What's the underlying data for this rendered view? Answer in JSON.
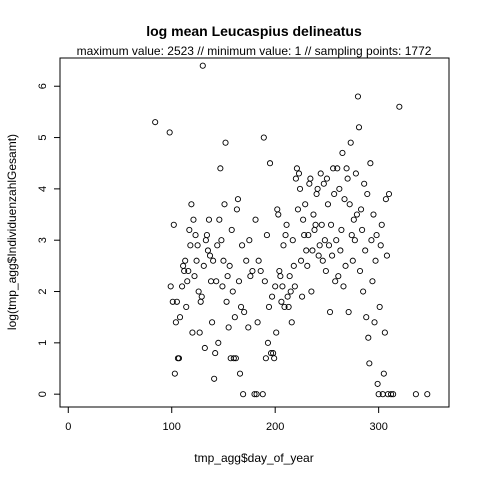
{
  "chart_data": {
    "type": "scatter",
    "title": "log mean Leucaspius delineatus",
    "subtitle": "maximum value: 2523  //  minimum value: 1  // sampling points: 1772",
    "xlabel": "tmp_agg$day_of_year",
    "ylabel": "log(tmp_agg$IndividuenzahlGesamt)",
    "xlim": [
      -8,
      368
    ],
    "ylim": [
      -0.25,
      6.55
    ],
    "xticks": [
      0,
      100,
      200,
      300
    ],
    "yticks": [
      0,
      1,
      2,
      3,
      4,
      5,
      6
    ],
    "marker": "open-circle",
    "grid": false,
    "legend": "none",
    "points": [
      [
        84,
        5.3
      ],
      [
        98,
        5.1
      ],
      [
        99,
        2.1
      ],
      [
        101,
        1.8
      ],
      [
        102,
        3.3
      ],
      [
        103,
        0.4
      ],
      [
        104,
        1.4
      ],
      [
        105,
        1.8
      ],
      [
        106,
        0.7
      ],
      [
        107,
        0.7
      ],
      [
        108,
        1.5
      ],
      [
        110,
        2.1
      ],
      [
        111,
        2.5
      ],
      [
        112,
        2.4
      ],
      [
        113,
        2.6
      ],
      [
        114,
        1.7
      ],
      [
        115,
        2.2
      ],
      [
        116,
        2.4
      ],
      [
        117,
        3.2
      ],
      [
        118,
        2.9
      ],
      [
        119,
        3.7
      ],
      [
        120,
        1.2
      ],
      [
        121,
        3.4
      ],
      [
        122,
        2.3
      ],
      [
        123,
        3.1
      ],
      [
        124,
        2.6
      ],
      [
        125,
        2.9
      ],
      [
        126,
        2.0
      ],
      [
        127,
        1.2
      ],
      [
        128,
        1.8
      ],
      [
        129,
        1.9
      ],
      [
        130,
        6.4
      ],
      [
        131,
        2.5
      ],
      [
        132,
        0.9
      ],
      [
        133,
        3.0
      ],
      [
        134,
        3.1
      ],
      [
        135,
        2.8
      ],
      [
        136,
        3.4
      ],
      [
        137,
        2.7
      ],
      [
        138,
        2.2
      ],
      [
        139,
        1.4
      ],
      [
        140,
        2.6
      ],
      [
        141,
        0.3
      ],
      [
        142,
        0.8
      ],
      [
        143,
        2.2
      ],
      [
        144,
        2.9
      ],
      [
        145,
        1.0
      ],
      [
        146,
        3.4
      ],
      [
        147,
        4.4
      ],
      [
        148,
        3.0
      ],
      [
        149,
        2.1
      ],
      [
        150,
        2.6
      ],
      [
        151,
        3.7
      ],
      [
        152,
        4.9
      ],
      [
        153,
        1.8
      ],
      [
        154,
        2.3
      ],
      [
        155,
        1.3
      ],
      [
        156,
        2.5
      ],
      [
        157,
        0.7
      ],
      [
        158,
        3.2
      ],
      [
        159,
        2.0
      ],
      [
        160,
        0.7
      ],
      [
        161,
        1.5
      ],
      [
        162,
        0.7
      ],
      [
        163,
        3.6
      ],
      [
        164,
        3.8
      ],
      [
        165,
        2.2
      ],
      [
        166,
        0.4
      ],
      [
        167,
        1.7
      ],
      [
        168,
        2.9
      ],
      [
        169,
        0.0
      ],
      [
        170,
        1.6
      ],
      [
        172,
        2.6
      ],
      [
        174,
        1.3
      ],
      [
        175,
        3.0
      ],
      [
        176,
        2.3
      ],
      [
        178,
        2.4
      ],
      [
        180,
        0.0
      ],
      [
        181,
        3.4
      ],
      [
        182,
        0.0
      ],
      [
        183,
        1.4
      ],
      [
        184,
        2.6
      ],
      [
        186,
        2.4
      ],
      [
        188,
        0.0
      ],
      [
        189,
        5.0
      ],
      [
        190,
        2.2
      ],
      [
        191,
        0.7
      ],
      [
        192,
        3.1
      ],
      [
        193,
        1.0
      ],
      [
        194,
        1.7
      ],
      [
        195,
        4.5
      ],
      [
        196,
        0.8
      ],
      [
        197,
        1.9
      ],
      [
        198,
        0.8
      ],
      [
        199,
        0.7
      ],
      [
        200,
        2.1
      ],
      [
        201,
        1.2
      ],
      [
        202,
        3.6
      ],
      [
        203,
        3.5
      ],
      [
        204,
        2.4
      ],
      [
        205,
        2.3
      ],
      [
        206,
        1.8
      ],
      [
        207,
        2.1
      ],
      [
        208,
        2.9
      ],
      [
        209,
        1.7
      ],
      [
        210,
        3.1
      ],
      [
        211,
        3.3
      ],
      [
        212,
        1.9
      ],
      [
        213,
        1.7
      ],
      [
        214,
        2.3
      ],
      [
        215,
        2.0
      ],
      [
        216,
        1.4
      ],
      [
        217,
        3.0
      ],
      [
        218,
        2.5
      ],
      [
        219,
        2.1
      ],
      [
        220,
        4.2
      ],
      [
        221,
        4.4
      ],
      [
        222,
        3.6
      ],
      [
        223,
        4.3
      ],
      [
        224,
        4.0
      ],
      [
        225,
        2.6
      ],
      [
        226,
        1.9
      ],
      [
        227,
        3.4
      ],
      [
        228,
        3.1
      ],
      [
        229,
        3.7
      ],
      [
        230,
        2.8
      ],
      [
        231,
        2.5
      ],
      [
        232,
        3.1
      ],
      [
        233,
        4.1
      ],
      [
        234,
        4.2
      ],
      [
        235,
        2.0
      ],
      [
        236,
        2.8
      ],
      [
        237,
        3.5
      ],
      [
        238,
        3.2
      ],
      [
        239,
        3.3
      ],
      [
        240,
        3.9
      ],
      [
        241,
        4.0
      ],
      [
        242,
        2.7
      ],
      [
        243,
        2.9
      ],
      [
        244,
        4.3
      ],
      [
        245,
        3.3
      ],
      [
        246,
        2.6
      ],
      [
        247,
        4.1
      ],
      [
        248,
        3.0
      ],
      [
        249,
        2.4
      ],
      [
        250,
        4.2
      ],
      [
        251,
        3.7
      ],
      [
        252,
        2.9
      ],
      [
        253,
        1.6
      ],
      [
        254,
        3.3
      ],
      [
        255,
        2.7
      ],
      [
        256,
        4.4
      ],
      [
        257,
        3.9
      ],
      [
        258,
        2.2
      ],
      [
        259,
        3.0
      ],
      [
        260,
        4.4
      ],
      [
        261,
        2.3
      ],
      [
        262,
        4.0
      ],
      [
        263,
        2.8
      ],
      [
        264,
        3.2
      ],
      [
        265,
        4.7
      ],
      [
        266,
        2.1
      ],
      [
        267,
        3.8
      ],
      [
        268,
        2.5
      ],
      [
        269,
        4.4
      ],
      [
        270,
        4.2
      ],
      [
        271,
        1.6
      ],
      [
        272,
        3.7
      ],
      [
        273,
        4.9
      ],
      [
        274,
        3.1
      ],
      [
        275,
        2.6
      ],
      [
        276,
        3.4
      ],
      [
        277,
        3.0
      ],
      [
        278,
        4.3
      ],
      [
        279,
        3.5
      ],
      [
        280,
        5.8
      ],
      [
        281,
        5.2
      ],
      [
        282,
        2.4
      ],
      [
        283,
        3.6
      ],
      [
        284,
        3.2
      ],
      [
        285,
        2.0
      ],
      [
        286,
        4.1
      ],
      [
        287,
        2.8
      ],
      [
        288,
        1.5
      ],
      [
        289,
        3.9
      ],
      [
        290,
        1.1
      ],
      [
        291,
        0.6
      ],
      [
        292,
        4.5
      ],
      [
        293,
        3.0
      ],
      [
        294,
        2.2
      ],
      [
        295,
        3.5
      ],
      [
        296,
        1.4
      ],
      [
        297,
        2.6
      ],
      [
        298,
        3.1
      ],
      [
        299,
        0.2
      ],
      [
        300,
        0.0
      ],
      [
        301,
        1.7
      ],
      [
        302,
        2.9
      ],
      [
        303,
        3.3
      ],
      [
        304,
        0.0
      ],
      [
        305,
        0.4
      ],
      [
        306,
        1.2
      ],
      [
        307,
        3.8
      ],
      [
        308,
        2.7
      ],
      [
        309,
        0.0
      ],
      [
        310,
        3.9
      ],
      [
        312,
        0.0
      ],
      [
        314,
        0.0
      ],
      [
        320,
        5.6
      ],
      [
        336,
        0.0
      ],
      [
        347,
        0.0
      ]
    ]
  }
}
